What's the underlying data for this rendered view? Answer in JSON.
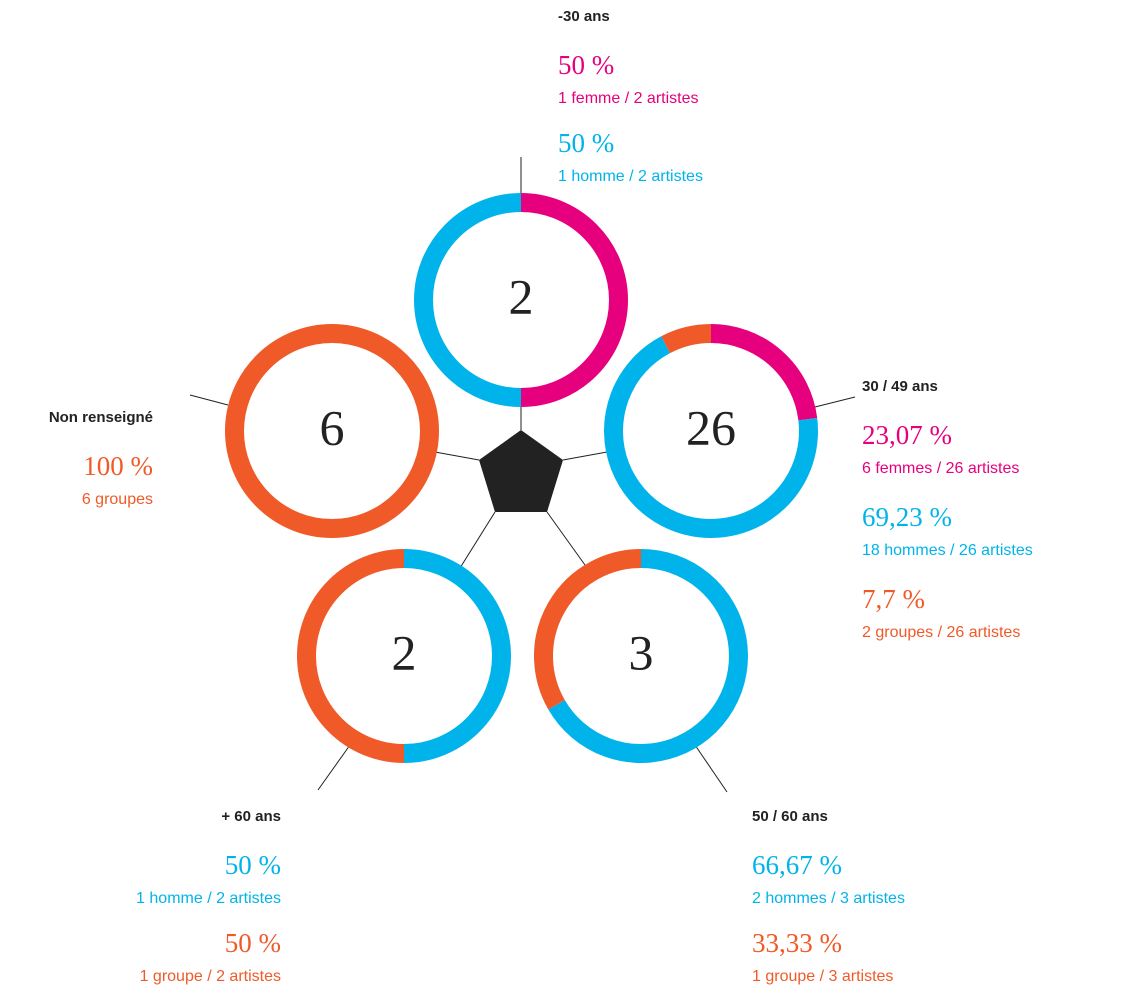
{
  "chart_data": [
    {
      "type": "pie",
      "title": "-30 ans",
      "total": 2,
      "categories": [
        "1 femme / 2 artistes",
        "1 homme / 2 artistes"
      ],
      "values": [
        50,
        50
      ],
      "value_labels": [
        "50 %",
        "50 %"
      ],
      "colors": [
        "#e6007e",
        "#00b4eb"
      ]
    },
    {
      "type": "pie",
      "title": "30 / 49 ans",
      "total": 26,
      "categories": [
        "6 femmes / 26 artistes",
        "18 hommes / 26 artistes",
        "2 groupes / 26 artistes"
      ],
      "values": [
        23.07,
        69.23,
        7.7
      ],
      "value_labels": [
        "23,07 %",
        "69,23 %",
        "7,7 %"
      ],
      "colors": [
        "#e6007e",
        "#00b4eb",
        "#f05a28"
      ]
    },
    {
      "type": "pie",
      "title": "50 / 60 ans",
      "total": 3,
      "categories": [
        "2 hommes / 3 artistes",
        "1 groupe / 3 artistes"
      ],
      "values": [
        66.67,
        33.33
      ],
      "value_labels": [
        "66,67 %",
        "33,33 %"
      ],
      "colors": [
        "#00b4eb",
        "#f05a28"
      ]
    },
    {
      "type": "pie",
      "title": "+ 60 ans",
      "total": 2,
      "categories": [
        "1 homme / 2 artistes",
        "1 groupe / 2 artistes"
      ],
      "values": [
        50,
        50
      ],
      "value_labels": [
        "50 %",
        "50 %"
      ],
      "colors": [
        "#00b4eb",
        "#f05a28"
      ]
    },
    {
      "type": "pie",
      "title": "Non renseigné",
      "total": 6,
      "categories": [
        "6 groupes"
      ],
      "values": [
        100
      ],
      "value_labels": [
        "100 %"
      ],
      "colors": [
        "#f05a28"
      ]
    }
  ]
}
